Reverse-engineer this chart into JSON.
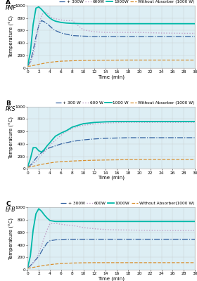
{
  "panels": [
    {
      "label": "A",
      "biomass": "PMF",
      "series": [
        {
          "name": "+ 300W",
          "color": "#3060a0",
          "style": "-.",
          "lw": 0.9,
          "points_x": [
            0,
            0.5,
            1.0,
            1.5,
            2.0,
            2.5,
            3.0,
            3.5,
            4.0,
            4.5,
            5.0,
            6.0,
            7.0,
            8.0,
            10.0,
            12.0,
            14.0,
            16.0,
            18.0,
            20.0,
            22.0,
            24.0,
            26.0,
            28.0,
            30.0
          ],
          "points_y": [
            30,
            100,
            280,
            500,
            680,
            760,
            740,
            710,
            670,
            630,
            600,
            560,
            540,
            520,
            510,
            505,
            505,
            505,
            505,
            505,
            505,
            505,
            505,
            505,
            505
          ]
        },
        {
          "name": "600W",
          "color": "#c0a0c8",
          "style": ":",
          "lw": 1.0,
          "points_x": [
            0,
            0.5,
            1.0,
            1.5,
            2.0,
            2.5,
            3.0,
            3.5,
            4.0,
            4.5,
            5.0,
            5.5,
            6.0,
            7.0,
            8.0,
            10.0,
            12.0,
            14.0,
            16.0,
            18.0,
            20.0,
            22.0,
            24.0,
            26.0,
            28.0,
            30.0
          ],
          "points_y": [
            30,
            80,
            200,
            420,
            680,
            840,
            910,
            880,
            830,
            800,
            790,
            780,
            770,
            760,
            760,
            610,
            580,
            570,
            570,
            570,
            570,
            565,
            560,
            558,
            555,
            555
          ]
        },
        {
          "name": "1000W",
          "color": "#00b8a8",
          "style": "-",
          "lw": 1.3,
          "points_x": [
            0,
            0.5,
            1.0,
            1.5,
            2.0,
            2.5,
            3.0,
            3.5,
            4.0,
            4.5,
            5.0,
            6.0,
            7.0,
            8.0,
            10.0,
            12.0,
            14.0,
            16.0,
            18.0,
            20.0,
            22.0,
            24.0,
            26.0,
            28.0,
            30.0
          ],
          "points_y": [
            30,
            250,
            700,
            960,
            980,
            940,
            890,
            840,
            800,
            770,
            750,
            730,
            720,
            715,
            710,
            710,
            710,
            710,
            710,
            710,
            710,
            710,
            710,
            710,
            710
          ]
        },
        {
          "name": "Without Absorber (1000 W)",
          "color": "#d89030",
          "style": "--",
          "lw": 0.9,
          "points_x": [
            0,
            0.5,
            1.0,
            1.5,
            2.0,
            3.0,
            4.0,
            5.0,
            6.0,
            8.0,
            10.0,
            12.0,
            14.0,
            16.0,
            18.0,
            20.0,
            22.0,
            24.0,
            26.0,
            28.0,
            30.0
          ],
          "points_y": [
            25,
            30,
            38,
            48,
            58,
            75,
            90,
            100,
            108,
            115,
            120,
            122,
            124,
            125,
            126,
            126,
            126,
            126,
            126,
            126,
            126
          ]
        }
      ]
    },
    {
      "label": "B",
      "biomass": "PKS",
      "series": [
        {
          "name": "+ 300 W",
          "color": "#3060a0",
          "style": "-.",
          "lw": 0.9,
          "points_x": [
            0,
            0.5,
            1.0,
            1.5,
            2.0,
            2.5,
            3.0,
            4.0,
            5.0,
            6.0,
            7.0,
            8.0,
            10.0,
            12.0,
            14.0,
            16.0,
            18.0,
            20.0,
            22.0,
            24.0,
            26.0,
            28.0,
            30.0
          ],
          "points_y": [
            30,
            55,
            110,
            170,
            220,
            260,
            295,
            340,
            370,
            400,
            420,
            440,
            465,
            480,
            490,
            495,
            500,
            500,
            500,
            500,
            500,
            500,
            500
          ]
        },
        {
          "name": "600 W",
          "color": "#c0a0c8",
          "style": ":",
          "lw": 1.0,
          "points_x": [
            0,
            0.5,
            1.0,
            1.5,
            2.0,
            2.5,
            3.0,
            4.0,
            5.0,
            6.0,
            7.0,
            8.0,
            10.0,
            12.0,
            14.0,
            16.0,
            18.0,
            20.0,
            22.0,
            24.0,
            26.0,
            28.0,
            30.0
          ],
          "points_y": [
            30,
            50,
            80,
            120,
            170,
            220,
            270,
            380,
            460,
            540,
            600,
            650,
            700,
            720,
            735,
            742,
            745,
            745,
            745,
            745,
            745,
            745,
            745
          ]
        },
        {
          "name": "1000 W",
          "color": "#00b8a8",
          "style": "-",
          "lw": 1.3,
          "points_x": [
            0,
            0.5,
            1.0,
            1.5,
            2.0,
            2.5,
            3.0,
            3.5,
            4.0,
            4.5,
            5.0,
            6.0,
            7.0,
            8.0,
            10.0,
            12.0,
            14.0,
            16.0,
            18.0,
            20.0,
            22.0,
            24.0,
            26.0,
            28.0,
            30.0
          ],
          "points_y": [
            30,
            160,
            340,
            340,
            290,
            270,
            310,
            370,
            420,
            475,
            525,
            575,
            615,
            670,
            725,
            745,
            755,
            760,
            760,
            760,
            760,
            760,
            760,
            760,
            760
          ]
        },
        {
          "name": "Without Absorber (1000 W)",
          "color": "#d89030",
          "style": "--",
          "lw": 0.9,
          "points_x": [
            0,
            0.5,
            1.0,
            1.5,
            2.0,
            3.0,
            4.0,
            5.0,
            6.0,
            8.0,
            10.0,
            12.0,
            14.0,
            16.0,
            18.0,
            20.0,
            22.0,
            24.0,
            26.0,
            28.0,
            30.0
          ],
          "points_y": [
            25,
            32,
            42,
            52,
            62,
            80,
            95,
            108,
            115,
            125,
            133,
            138,
            142,
            145,
            148,
            150,
            150,
            150,
            150,
            150,
            150
          ]
        }
      ]
    },
    {
      "label": "C",
      "biomass": "EFB",
      "series": [
        {
          "name": "+ 300W",
          "color": "#3060a0",
          "style": "-.",
          "lw": 0.9,
          "points_x": [
            0,
            0.5,
            1.0,
            1.5,
            2.0,
            2.5,
            3.0,
            3.5,
            4.0,
            5.0,
            6.0,
            7.0,
            8.0,
            10.0,
            12.0,
            14.0,
            16.0,
            18.0,
            20.0,
            22.0,
            24.0,
            26.0,
            28.0,
            30.0
          ],
          "points_y": [
            30,
            65,
            115,
            165,
            215,
            295,
            365,
            430,
            465,
            480,
            488,
            490,
            490,
            490,
            490,
            490,
            490,
            490,
            490,
            490,
            490,
            490,
            490,
            490
          ]
        },
        {
          "name": "600W",
          "color": "#c0a0c8",
          "style": ":",
          "lw": 1.0,
          "points_x": [
            0,
            0.5,
            1.0,
            1.5,
            2.0,
            2.5,
            3.0,
            3.5,
            4.0,
            5.0,
            6.0,
            7.0,
            8.0,
            10.0,
            12.0,
            14.0,
            16.0,
            18.0,
            20.0,
            22.0,
            24.0,
            26.0,
            28.0,
            30.0
          ],
          "points_y": [
            30,
            60,
            105,
            170,
            265,
            390,
            520,
            640,
            740,
            745,
            730,
            718,
            712,
            678,
            658,
            645,
            640,
            638,
            635,
            633,
            630,
            630,
            630,
            630
          ]
        },
        {
          "name": "1000W",
          "color": "#00b8a8",
          "style": "-",
          "lw": 1.3,
          "points_x": [
            0,
            0.5,
            1.0,
            1.5,
            2.0,
            2.5,
            3.0,
            3.5,
            4.0,
            5.0,
            6.0,
            7.0,
            8.0,
            10.0,
            12.0,
            14.0,
            16.0,
            18.0,
            20.0,
            22.0,
            24.0,
            26.0,
            28.0,
            30.0
          ],
          "points_y": [
            30,
            220,
            640,
            900,
            980,
            940,
            880,
            830,
            790,
            775,
            775,
            775,
            775,
            775,
            775,
            775,
            775,
            775,
            775,
            775,
            775,
            775,
            775,
            775
          ]
        },
        {
          "name": "Without Absorber(1000 W)",
          "color": "#d89030",
          "style": "--",
          "lw": 0.9,
          "points_x": [
            0,
            0.5,
            1.0,
            1.5,
            2.0,
            3.0,
            4.0,
            5.0,
            6.0,
            8.0,
            10.0,
            12.0,
            14.0,
            16.0,
            18.0,
            20.0,
            22.0,
            24.0,
            26.0,
            28.0,
            30.0
          ],
          "points_y": [
            25,
            30,
            38,
            46,
            55,
            70,
            82,
            92,
            100,
            108,
            112,
            114,
            114,
            114,
            114,
            114,
            114,
            114,
            114,
            114,
            114
          ]
        }
      ]
    }
  ],
  "ylim": [
    0,
    1000
  ],
  "xlim": [
    0,
    30
  ],
  "xticks": [
    0,
    2,
    4,
    6,
    8,
    10,
    12,
    14,
    16,
    18,
    20,
    22,
    24,
    26,
    28,
    30
  ],
  "yticks": [
    0,
    200,
    400,
    600,
    800,
    1000
  ],
  "xlabel": "Time (min)",
  "ylabel": "Temperature (°C)",
  "bg_color": "#ddeef4",
  "legend_fontsize": 4.2,
  "axis_fontsize": 5,
  "tick_fontsize": 4.2,
  "label_fontsize": 6.5,
  "biomass_fontsize": 5.5
}
